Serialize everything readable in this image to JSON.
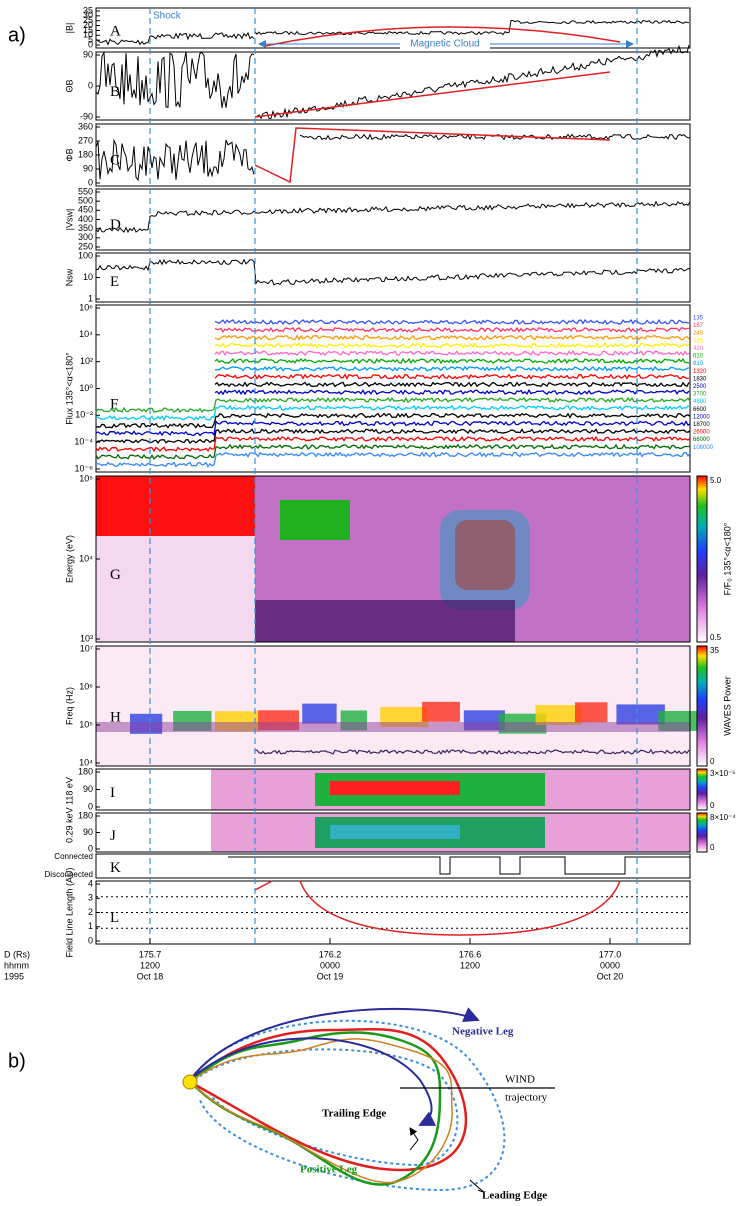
{
  "figure_a": {
    "label": "a)",
    "annotations": {
      "shock": "Shock",
      "cloud": "Magnetic Cloud"
    },
    "panels": [
      {
        "letter": "A",
        "ylabel": "|B|",
        "yticks": [
          "0",
          "5",
          "10",
          "15",
          "20",
          "25",
          "30",
          "35"
        ]
      },
      {
        "letter": "B",
        "ylabel": "ΘB",
        "yticks": [
          "-90",
          "0",
          "90"
        ]
      },
      {
        "letter": "C",
        "ylabel": "ΦB",
        "yticks": [
          "0",
          "90",
          "180",
          "270",
          "360"
        ]
      },
      {
        "letter": "D",
        "ylabel": "|Vsw|",
        "yticks": [
          "250",
          "300",
          "350",
          "400",
          "450",
          "500",
          "550"
        ]
      },
      {
        "letter": "E",
        "ylabel": "Nsw",
        "yticks": [
          "1",
          "10",
          "100"
        ]
      },
      {
        "letter": "F",
        "ylabel": "Flux 135°<α<180°",
        "yticks": [
          "10⁻⁶",
          "10⁻⁴",
          "10⁻²",
          "10⁰",
          "10²",
          "10⁴",
          "10⁶"
        ]
      },
      {
        "letter": "G",
        "ylabel": "Energy (eV)",
        "yticks": [
          "10³",
          "10⁴",
          "10⁵"
        ]
      },
      {
        "letter": "H",
        "ylabel": "Freq (Hz)",
        "yticks": [
          "10⁴",
          "10⁵",
          "10⁶",
          "10⁷"
        ]
      },
      {
        "letter": "I",
        "yticks": [
          "0",
          "90",
          "180"
        ]
      },
      {
        "letter": "J",
        "yticks": [
          "0",
          "90",
          "180"
        ]
      },
      {
        "letter": "K",
        "yticks": [
          "Disconnected",
          "Connected"
        ]
      },
      {
        "letter": "L",
        "ylabel": "Field Line Length (AU)",
        "yticks": [
          "0",
          "1",
          "2",
          "3",
          "4"
        ]
      }
    ],
    "ij_ylabel": "0.29 keV  118 eV",
    "channels": [
      "135",
      "187",
      "245",
      "325",
      "420",
      "610",
      "810",
      "1320",
      "1830",
      "2500",
      "3700",
      "4800",
      "6600",
      "12000",
      "18700",
      "26000",
      "66000",
      "108000"
    ],
    "colorbars": [
      {
        "label": "F/F₀ 135°<α<180°",
        "ticks": [
          "5.0",
          "0.5"
        ]
      },
      {
        "label": "WAVES Power",
        "ticks": [
          "35",
          "0"
        ]
      },
      {
        "ticks": [
          "3×10⁻⁵",
          "0"
        ]
      },
      {
        "ticks": [
          "8×10⁻⁴",
          "0"
        ]
      }
    ],
    "x_axis": {
      "row_labels": [
        "D (Rs)",
        "hhmm",
        "1995"
      ],
      "ticks": [
        [
          "175.7",
          "1200",
          "Oct 18"
        ],
        [
          "176.2",
          "0000",
          "Oct 19"
        ],
        [
          "176.6",
          "1200"
        ],
        [
          "177.0",
          "0000",
          "Oct 20"
        ]
      ]
    }
  },
  "figure_b": {
    "label": "b)",
    "negative_leg": "Negative Leg",
    "wind": "WIND",
    "trajectory": "trajectory",
    "trailing_edge": "Trailing Edge",
    "positive_leg": "Positive Leg",
    "leading_edge": "Leading Edge"
  }
}
